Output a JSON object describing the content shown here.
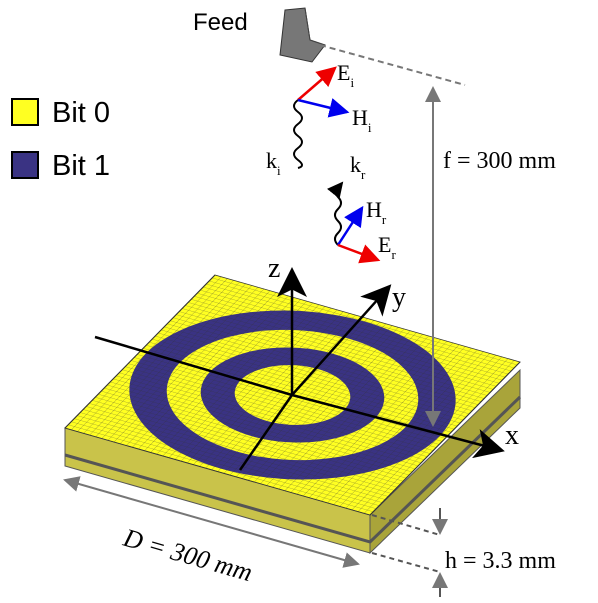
{
  "feed": "Feed",
  "legend": [
    "Bit 0",
    "Bit 1"
  ],
  "waves": {
    "incident": {
      "E": "E",
      "E_sub": "i",
      "H": "H",
      "H_sub": "i",
      "k": "k",
      "k_sub": "i"
    },
    "reflected": {
      "E": "E",
      "E_sub": "r",
      "H": "H",
      "H_sub": "r",
      "k": "k",
      "k_sub": "r"
    }
  },
  "axes": {
    "x": "x",
    "y": "y",
    "z": "z"
  },
  "dimensions": {
    "f": "f = 300 mm",
    "D": "D = 300 mm",
    "h": "h = 3.3 mm"
  }
}
